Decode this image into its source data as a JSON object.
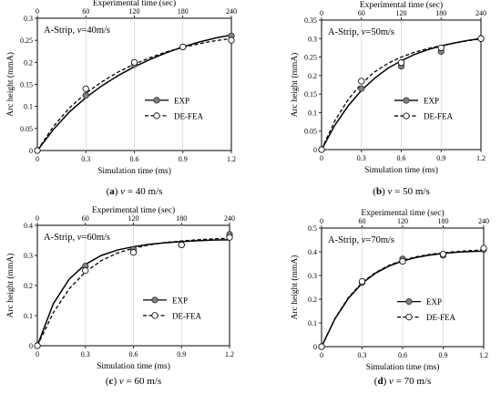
{
  "chart_data": [
    {
      "type": "line",
      "caption": "(a) v = 40 m/s",
      "title": "A-Strip, v=40m/s",
      "xlabel": "Simulation time (ms)",
      "ylabel": "Arc height (mmA)",
      "x2label": "Experimental time (sec)",
      "xlim": [
        0,
        1.2
      ],
      "ylim": [
        0,
        0.3
      ],
      "xticks": [
        "0",
        "0.3",
        "0.6",
        "0.9",
        "1.2"
      ],
      "yticks": [
        "0",
        "0.05",
        "0.1",
        "0.15",
        "0.2",
        "0.25",
        "0.3"
      ],
      "x2ticks": [
        "0",
        "60",
        "120",
        "180",
        "240"
      ],
      "legend_position": "right",
      "series": [
        {
          "name": "EXP",
          "style": "solid",
          "marker": "filled",
          "x": [
            0,
            0.3,
            0.6,
            0.9,
            1.2
          ],
          "y": [
            0,
            0.125,
            0.195,
            0.235,
            0.26
          ],
          "curve_x": [
            0,
            0.1,
            0.2,
            0.3,
            0.4,
            0.5,
            0.6,
            0.7,
            0.8,
            0.9,
            1.0,
            1.1,
            1.2
          ],
          "curve_y": [
            0,
            0.048,
            0.088,
            0.12,
            0.147,
            0.17,
            0.19,
            0.207,
            0.222,
            0.235,
            0.246,
            0.255,
            0.262
          ]
        },
        {
          "name": "DE-FEA",
          "style": "dashed",
          "marker": "open",
          "x": [
            0,
            0.3,
            0.6,
            0.9,
            1.2
          ],
          "y": [
            0,
            0.14,
            0.2,
            0.235,
            0.25
          ],
          "curve_x": [
            0,
            0.1,
            0.2,
            0.3,
            0.4,
            0.5,
            0.6,
            0.7,
            0.8,
            0.9,
            1.0,
            1.1,
            1.2
          ],
          "curve_y": [
            0,
            0.055,
            0.097,
            0.13,
            0.156,
            0.178,
            0.196,
            0.211,
            0.224,
            0.234,
            0.242,
            0.249,
            0.254
          ]
        }
      ]
    },
    {
      "type": "line",
      "caption": "(b) v = 50 m/s",
      "title": "A-Strip, v=50m/s",
      "xlabel": "Simulation time (ms)",
      "ylabel": "Arc height (mmA)",
      "x2label": "Experimental time (sec)",
      "xlim": [
        0,
        1.2
      ],
      "ylim": [
        0,
        0.35
      ],
      "xticks": [
        "0",
        "0.3",
        "0.6",
        "0.9",
        "1.2"
      ],
      "yticks": [
        "0",
        "0.05",
        "0.1",
        "0.15",
        "0.2",
        "0.25",
        "0.3",
        "0.35"
      ],
      "x2ticks": [
        "0",
        "60",
        "120",
        "180",
        "240"
      ],
      "legend_position": "right",
      "series": [
        {
          "name": "EXP",
          "style": "solid",
          "marker": "filled",
          "x": [
            0,
            0.3,
            0.6,
            0.9,
            1.2
          ],
          "y": [
            0,
            0.165,
            0.225,
            0.265,
            0.3
          ],
          "curve_x": [
            0,
            0.1,
            0.2,
            0.3,
            0.4,
            0.5,
            0.6,
            0.7,
            0.8,
            0.9,
            1.0,
            1.1,
            1.2
          ],
          "curve_y": [
            0,
            0.066,
            0.118,
            0.16,
            0.193,
            0.22,
            0.24,
            0.257,
            0.27,
            0.28,
            0.288,
            0.295,
            0.3
          ]
        },
        {
          "name": "DE-FEA",
          "style": "dashed",
          "marker": "open",
          "x": [
            0,
            0.3,
            0.6,
            0.9,
            1.2
          ],
          "y": [
            0,
            0.185,
            0.235,
            0.275,
            0.3
          ],
          "curve_x": [
            0,
            0.1,
            0.2,
            0.3,
            0.4,
            0.5,
            0.6,
            0.7,
            0.8,
            0.9,
            1.0,
            1.1,
            1.2
          ],
          "curve_y": [
            0,
            0.078,
            0.135,
            0.178,
            0.21,
            0.233,
            0.25,
            0.263,
            0.273,
            0.281,
            0.288,
            0.294,
            0.299
          ]
        }
      ]
    },
    {
      "type": "line",
      "caption": "(c) v = 60 m/s",
      "title": "A-Strip, v=60m/s",
      "xlabel": "Simulation time (ms)",
      "ylabel": "Arc height (mmA)",
      "x2label": "Experimental time (sec)",
      "xlim": [
        0,
        1.2
      ],
      "ylim": [
        0,
        0.4
      ],
      "xticks": [
        "0",
        "0.3",
        "0.6",
        "0.9",
        "1.2"
      ],
      "yticks": [
        "0",
        "0.1",
        "0.2",
        "0.3",
        "0.4"
      ],
      "x2ticks": [
        "0",
        "60",
        "120",
        "180",
        "240"
      ],
      "legend_position": "right",
      "series": [
        {
          "name": "EXP",
          "style": "solid",
          "marker": "filled",
          "x": [
            0,
            0.3,
            0.6,
            0.9,
            1.2
          ],
          "y": [
            0,
            0.265,
            0.32,
            0.335,
            0.37
          ],
          "curve_x": [
            0,
            0.1,
            0.2,
            0.3,
            0.4,
            0.5,
            0.6,
            0.7,
            0.8,
            0.9,
            1.0,
            1.1,
            1.2
          ],
          "curve_y": [
            0,
            0.14,
            0.222,
            0.27,
            0.3,
            0.318,
            0.329,
            0.337,
            0.342,
            0.346,
            0.349,
            0.351,
            0.352
          ]
        },
        {
          "name": "DE-FEA",
          "style": "dashed",
          "marker": "open",
          "x": [
            0,
            0.3,
            0.6,
            0.9,
            1.2
          ],
          "y": [
            0,
            0.25,
            0.31,
            0.335,
            0.36
          ],
          "curve_x": [
            0,
            0.1,
            0.2,
            0.3,
            0.4,
            0.5,
            0.6,
            0.7,
            0.8,
            0.9,
            1.0,
            1.1,
            1.2
          ],
          "curve_y": [
            0,
            0.11,
            0.19,
            0.245,
            0.283,
            0.308,
            0.324,
            0.335,
            0.343,
            0.348,
            0.352,
            0.355,
            0.357
          ]
        }
      ]
    },
    {
      "type": "line",
      "caption": "(d) v = 70 m/s",
      "title": "A-Strip, v=70m/s",
      "xlabel": "Simulation time (ms)",
      "ylabel": "Arc height (mmA)",
      "x2label": "Experimental time (sec)",
      "xlim": [
        0,
        1.2
      ],
      "ylim": [
        0,
        0.5
      ],
      "xticks": [
        "0",
        "0.3",
        "0.6",
        "0.9",
        "1.2"
      ],
      "yticks": [
        "0",
        "0.1",
        "0.2",
        "0.3",
        "0.4",
        "0.5"
      ],
      "x2ticks": [
        "0",
        "60",
        "120",
        "180",
        "240"
      ],
      "legend_position": "right",
      "series": [
        {
          "name": "EXP",
          "style": "solid",
          "marker": "filled",
          "x": [
            0,
            0.3,
            0.6,
            0.9,
            1.2
          ],
          "y": [
            0,
            0.27,
            0.37,
            0.385,
            0.41
          ],
          "curve_x": [
            0,
            0.1,
            0.2,
            0.3,
            0.4,
            0.5,
            0.6,
            0.7,
            0.8,
            0.9,
            1.0,
            1.1,
            1.2
          ],
          "curve_y": [
            0,
            0.118,
            0.205,
            0.267,
            0.31,
            0.34,
            0.361,
            0.376,
            0.386,
            0.393,
            0.398,
            0.401,
            0.403
          ]
        },
        {
          "name": "DE-FEA",
          "style": "dashed",
          "marker": "open",
          "x": [
            0,
            0.3,
            0.6,
            0.9,
            1.2
          ],
          "y": [
            0,
            0.275,
            0.36,
            0.39,
            0.415
          ],
          "curve_x": [
            0,
            0.1,
            0.2,
            0.3,
            0.4,
            0.5,
            0.6,
            0.7,
            0.8,
            0.9,
            1.0,
            1.1,
            1.2
          ],
          "curve_y": [
            0,
            0.12,
            0.208,
            0.27,
            0.313,
            0.343,
            0.364,
            0.379,
            0.389,
            0.396,
            0.401,
            0.405,
            0.408
          ]
        }
      ]
    }
  ]
}
